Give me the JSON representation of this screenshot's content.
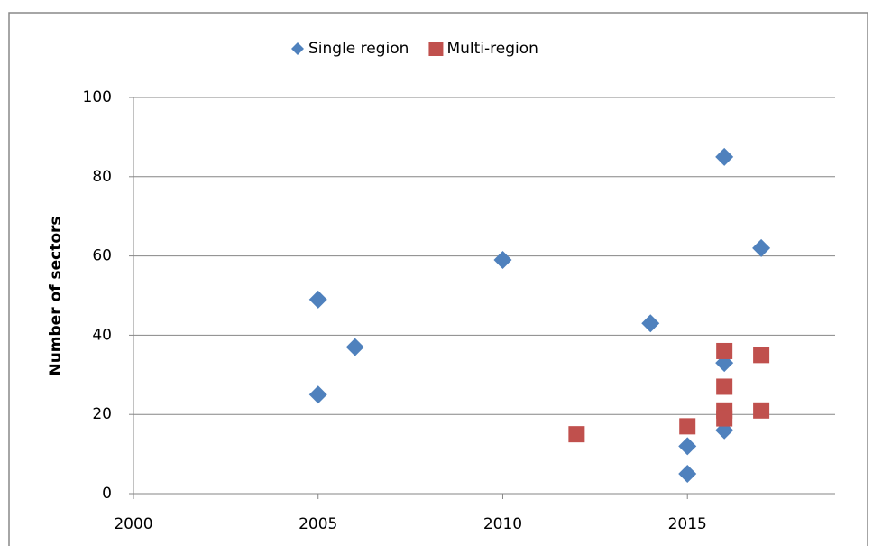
{
  "chart_data": {
    "type": "scatter",
    "y_label": "Number of sectors",
    "xlim": [
      2000,
      2019
    ],
    "xticks": [
      2000,
      2005,
      2010,
      2015
    ],
    "ylim": [
      0,
      100
    ],
    "yticks": [
      0,
      20,
      40,
      60,
      80,
      100
    ],
    "grid": true,
    "legend": "top",
    "series": [
      {
        "name": "Single region",
        "color": "#4f81bd",
        "marker": "diamond",
        "x": [
          2005,
          2005,
          2006,
          2010,
          2014,
          2015,
          2015,
          2016,
          2016,
          2016,
          2017
        ],
        "values": [
          49,
          25,
          37,
          59,
          43,
          12,
          5,
          85,
          33,
          16,
          62
        ]
      },
      {
        "name": "Multi-region",
        "color": "#c0504d",
        "marker": "square",
        "x": [
          2012,
          2015,
          2016,
          2016,
          2016,
          2016,
          2017,
          2017
        ],
        "values": [
          15,
          17,
          36,
          27,
          21,
          19,
          35,
          21
        ]
      }
    ]
  }
}
